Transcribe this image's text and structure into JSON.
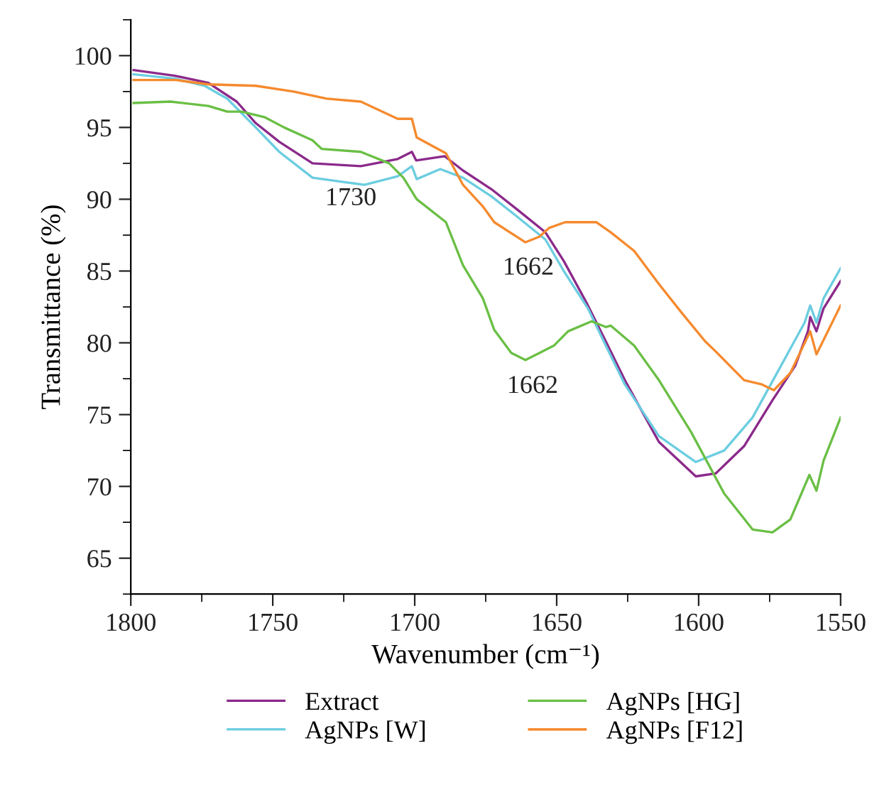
{
  "chart_data": {
    "type": "line",
    "xlabel": "Wavenumber (cm⁻¹)",
    "ylabel": "Transmittance (%)",
    "xlim": [
      1800,
      1550
    ],
    "ylim": [
      62.5,
      102.5
    ],
    "xticks": [
      1800,
      {
        "value": 1775,
        "label": null
      },
      1750,
      {
        "value": 1725,
        "label": null
      },
      1700,
      {
        "value": 1675,
        "label": null
      },
      1650,
      {
        "value": 1625,
        "label": null
      },
      1600,
      {
        "value": 1575,
        "label": null
      },
      1550
    ],
    "yticks": [
      {
        "value": 62.5,
        "label": null
      },
      65,
      {
        "value": 67.5,
        "label": null
      },
      70,
      {
        "value": 72.5,
        "label": null
      },
      75,
      {
        "value": 77.5,
        "label": null
      },
      80,
      {
        "value": 82.5,
        "label": null
      },
      85,
      {
        "value": 87.5,
        "label": null
      },
      90,
      {
        "value": 92.5,
        "label": null
      },
      95,
      {
        "value": 97.5,
        "label": null
      },
      100,
      {
        "value": 102.5,
        "label": null
      }
    ],
    "grid": false,
    "legend": "bottom",
    "marker": "none",
    "line_style": "solid",
    "series": [
      {
        "name": "Extract",
        "color": "#8b2a8b",
        "x": [
          1799,
          1784.5,
          1772.7,
          1762.7,
          1756,
          1747.7,
          1736,
          1719,
          1706,
          1701,
          1699.5,
          1689.5,
          1683,
          1673,
          1664,
          1654,
          1647.5,
          1639.5,
          1632.7,
          1626,
          1614,
          1601,
          1594,
          1584,
          1574,
          1566,
          1561.5,
          1560.7,
          1558.5,
          1556,
          1550
        ],
        "values": [
          99.0,
          98.6,
          98.1,
          96.8,
          95.3,
          94.0,
          92.5,
          92.3,
          92.8,
          93.3,
          92.7,
          93.0,
          92.0,
          90.7,
          89.3,
          87.7,
          85.7,
          82.8,
          80.1,
          77.4,
          73.1,
          70.7,
          70.9,
          72.8,
          76.0,
          78.4,
          80.8,
          81.8,
          80.8,
          82.4,
          84.3
        ]
      },
      {
        "name": "AgNPs [W]",
        "color": "#6ccde0",
        "x": [
          1799,
          1784.5,
          1774,
          1766,
          1756,
          1747.7,
          1736,
          1717.7,
          1706,
          1701,
          1699.3,
          1691,
          1683,
          1673,
          1664,
          1654,
          1647.5,
          1639,
          1632.7,
          1626,
          1614,
          1601,
          1591,
          1581,
          1571,
          1562.7,
          1560.7,
          1558.5,
          1556,
          1550
        ],
        "values": [
          98.7,
          98.4,
          97.9,
          97.0,
          95.0,
          93.3,
          91.5,
          91.0,
          91.6,
          92.3,
          91.4,
          92.1,
          91.5,
          90.2,
          88.8,
          87.2,
          85.0,
          82.4,
          79.8,
          77.1,
          73.5,
          71.7,
          72.5,
          74.8,
          78.4,
          81.4,
          82.6,
          81.4,
          83.1,
          85.2
        ]
      },
      {
        "name": "AgNPs [HG]",
        "color": "#6abf45",
        "x": [
          1799,
          1786,
          1772.7,
          1766,
          1761,
          1752.7,
          1746,
          1736,
          1732.7,
          1719,
          1709,
          1704,
          1699.3,
          1689,
          1683,
          1676,
          1672,
          1666,
          1661,
          1651,
          1646,
          1637.7,
          1632.7,
          1631,
          1622.7,
          1614,
          1602.7,
          1591,
          1581,
          1574,
          1567.7,
          1561,
          1558.5,
          1556,
          1550
        ],
        "values": [
          96.7,
          96.8,
          96.5,
          96.1,
          96.1,
          95.7,
          95.0,
          94.1,
          93.5,
          93.3,
          92.5,
          91.5,
          90.0,
          88.4,
          85.4,
          83.1,
          80.9,
          79.3,
          78.8,
          79.8,
          80.8,
          81.5,
          81.1,
          81.2,
          79.8,
          77.4,
          73.8,
          69.5,
          67.0,
          66.8,
          67.7,
          70.8,
          69.7,
          71.8,
          74.8
        ]
      },
      {
        "name": "AgNPs [F12]",
        "color": "#f58a2e",
        "x": [
          1799,
          1784,
          1772.7,
          1756,
          1742.7,
          1731,
          1719,
          1706,
          1701,
          1699.3,
          1689,
          1683,
          1676,
          1672,
          1661,
          1656,
          1652.7,
          1647,
          1636,
          1631,
          1622.7,
          1614,
          1606,
          1597.7,
          1594,
          1584,
          1577.7,
          1573.5,
          1567.7,
          1560.7,
          1558.5,
          1550
        ],
        "values": [
          98.3,
          98.3,
          98.0,
          97.9,
          97.5,
          97.0,
          96.8,
          95.6,
          95.6,
          94.3,
          93.2,
          91.0,
          89.5,
          88.4,
          87.0,
          87.4,
          88.0,
          88.4,
          88.4,
          87.7,
          86.4,
          84.1,
          82.1,
          80.1,
          79.4,
          77.4,
          77.1,
          76.7,
          77.9,
          80.8,
          79.2,
          82.6
        ]
      }
    ],
    "annotations": [
      "1730",
      "1662",
      "1662"
    ]
  }
}
